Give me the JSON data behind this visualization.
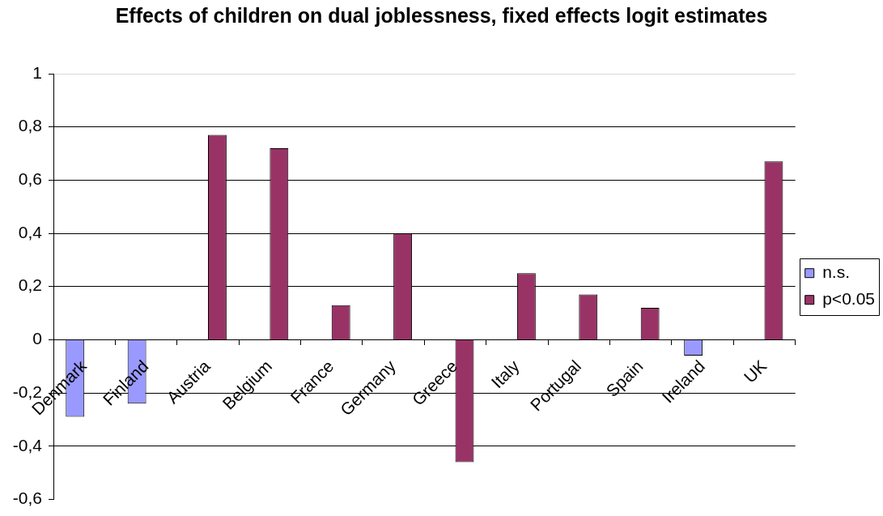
{
  "chart_data": {
    "type": "bar",
    "title": "Effects of children on dual joblessness, fixed effects logit estimates",
    "categories": [
      "Denmark",
      "Finland",
      "Austria",
      "Belgium",
      "France",
      "Germany",
      "Greece",
      "Italy",
      "Portugal",
      "Spain",
      "Ireland",
      "UK"
    ],
    "series": [
      {
        "name": "n.s.",
        "color": "#9999ff",
        "values": [
          -0.29,
          -0.24,
          null,
          null,
          null,
          null,
          null,
          null,
          null,
          null,
          -0.06,
          null
        ]
      },
      {
        "name": "p<0.05",
        "color": "#993366",
        "values": [
          null,
          null,
          0.77,
          0.72,
          0.13,
          0.4,
          -0.46,
          0.25,
          0.17,
          0.12,
          null,
          0.67
        ]
      }
    ],
    "ylim": [
      -0.6,
      1
    ],
    "yticks": [
      {
        "value": -0.6,
        "label": "-0,6"
      },
      {
        "value": -0.4,
        "label": "-0,4"
      },
      {
        "value": -0.2,
        "label": "-0,2"
      },
      0,
      {
        "value": 0.2,
        "label": "0,2"
      },
      {
        "value": 0.4,
        "label": "0,4"
      },
      {
        "value": 0.6,
        "label": "0,6"
      },
      {
        "value": 0.8,
        "label": "0,8"
      },
      1
    ],
    "grid": "y",
    "legend": "right"
  }
}
